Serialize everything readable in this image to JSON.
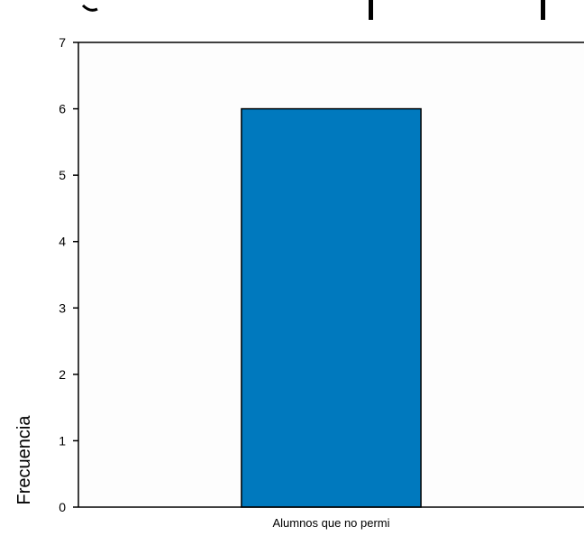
{
  "chart_data": {
    "type": "bar",
    "categories": [
      "Alumnos que no permi"
    ],
    "values": [
      6
    ],
    "xlabel": "",
    "ylabel": "Frecuencia",
    "ylim": [
      0,
      7
    ],
    "yticks": [
      0,
      1,
      2,
      3,
      4,
      5,
      6,
      7
    ],
    "grid": false,
    "colors": {
      "bar": "#0079BE",
      "plot_bg": "#FDFDFD",
      "axis": "#000000"
    }
  }
}
